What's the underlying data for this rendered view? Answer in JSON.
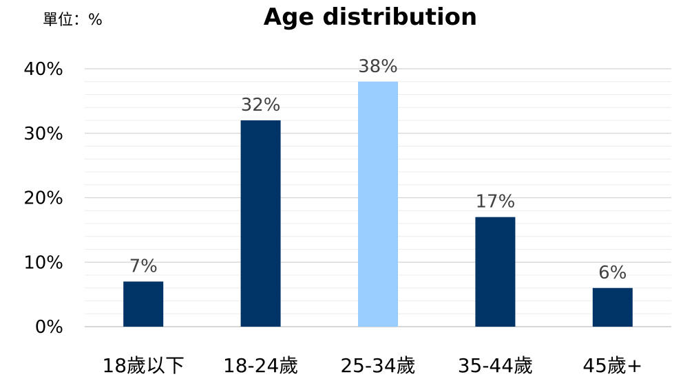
{
  "chart_data": {
    "type": "bar",
    "title": "Age distribution",
    "unit_label": "單位：%",
    "categories": [
      "18歲以下",
      "18-24歲",
      "25-34歲",
      "35-44歲",
      "45歲+"
    ],
    "values": [
      7,
      32,
      38,
      17,
      6
    ],
    "data_labels": [
      "7%",
      "32%",
      "38%",
      "17%",
      "6%"
    ],
    "bar_colors": [
      "#003366",
      "#003366",
      "#99CCFF",
      "#003366",
      "#003366"
    ],
    "ylim": [
      0,
      40
    ],
    "yticks": [
      0,
      10,
      20,
      30,
      40
    ],
    "ytick_labels": [
      "0%",
      "10%",
      "20%",
      "30%",
      "40%"
    ],
    "minor_grid_step": 2,
    "grid": true,
    "legend": "none"
  }
}
